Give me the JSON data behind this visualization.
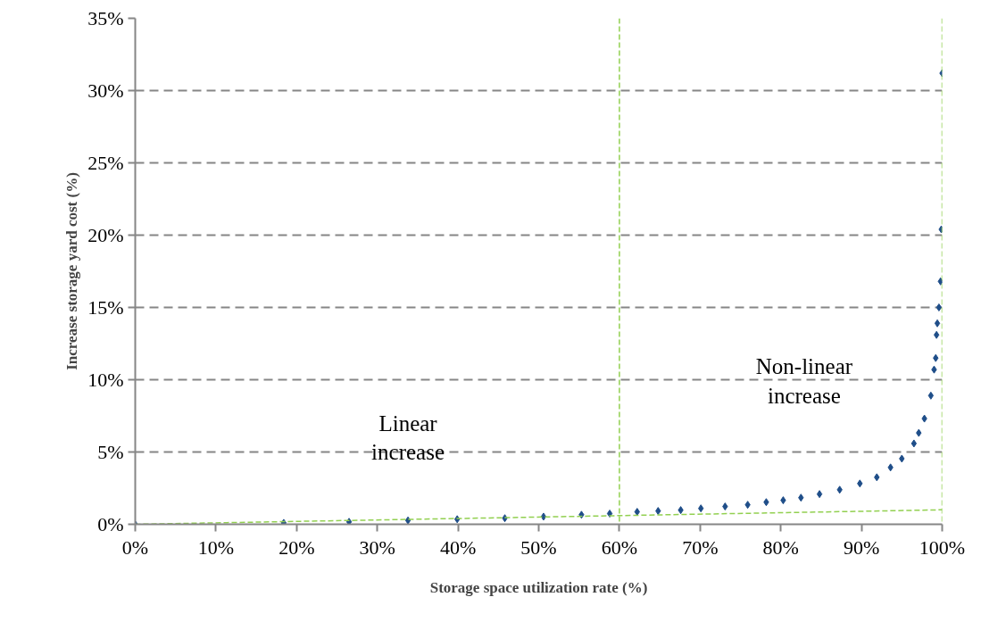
{
  "chart_data": {
    "type": "scatter",
    "xlabel": "Storage space utilization rate (%)",
    "ylabel": "Increase storage yard cost (%)",
    "xlim": [
      0,
      100
    ],
    "ylim": [
      0,
      35
    ],
    "xticks": [
      {
        "value": 0,
        "label": "0%"
      },
      {
        "value": 10,
        "label": "10%"
      },
      {
        "value": 20,
        "label": "20%"
      },
      {
        "value": 30,
        "label": "30%"
      },
      {
        "value": 40,
        "label": "40%"
      },
      {
        "value": 50,
        "label": "50%"
      },
      {
        "value": 60,
        "label": "60%"
      },
      {
        "value": 70,
        "label": "70%"
      },
      {
        "value": 80,
        "label": "80%"
      },
      {
        "value": 90,
        "label": "90%"
      },
      {
        "value": 100,
        "label": "100%"
      }
    ],
    "yticks": [
      {
        "value": 0,
        "label": "0%"
      },
      {
        "value": 5,
        "label": "5%"
      },
      {
        "value": 10,
        "label": "10%"
      },
      {
        "value": 15,
        "label": "15%"
      },
      {
        "value": 20,
        "label": "20%"
      },
      {
        "value": 25,
        "label": "25%"
      },
      {
        "value": 30,
        "label": "30%"
      },
      {
        "value": 35,
        "label": "35%"
      }
    ],
    "grid": "y",
    "series": [
      {
        "marker": "diamond",
        "color": "#1f4e89",
        "x": [
          0,
          18.4,
          26.5,
          33.8,
          39.9,
          45.8,
          50.6,
          55.3,
          58.8,
          62.2,
          64.8,
          67.6,
          70.1,
          73.1,
          75.9,
          78.2,
          80.3,
          82.5,
          84.8,
          87.3,
          89.8,
          91.9,
          93.6,
          95.0,
          96.5,
          97.1,
          97.8,
          98.6,
          99.0,
          99.2,
          99.3,
          99.4,
          99.6,
          99.8,
          99.9,
          100
        ],
        "values": [
          0,
          0.1,
          0.17,
          0.27,
          0.35,
          0.42,
          0.53,
          0.66,
          0.74,
          0.86,
          0.92,
          0.98,
          1.1,
          1.23,
          1.35,
          1.53,
          1.66,
          1.84,
          2.09,
          2.39,
          2.82,
          3.25,
          3.93,
          4.54,
          5.59,
          6.32,
          7.31,
          8.9,
          10.7,
          11.5,
          13.1,
          13.9,
          15.0,
          16.8,
          20.4,
          31.2
        ]
      },
      {
        "type": "line",
        "marker": "none",
        "color": "#92d050",
        "line_style": "dashed",
        "x": [
          0,
          100
        ],
        "values": [
          0,
          1.0
        ]
      }
    ],
    "ref_lines": [
      {
        "axis": "x",
        "value": 60,
        "color": "#92d050",
        "line_style": "dashed"
      },
      {
        "axis": "x",
        "value": 100,
        "color": "#92d050",
        "line_style": "dashed"
      }
    ],
    "annotations": [
      "Linear increase",
      "Non-linear increase"
    ]
  }
}
